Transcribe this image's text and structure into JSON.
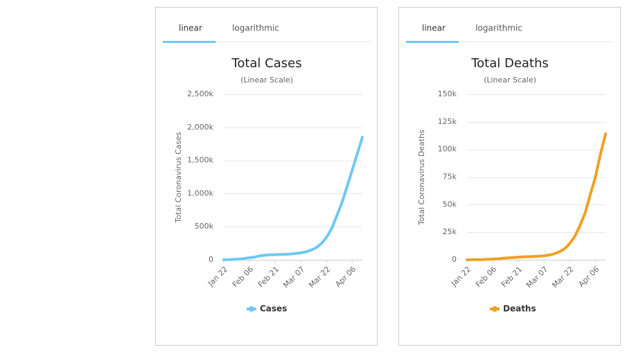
{
  "tabs": [
    [
      "linear",
      "logarithmic"
    ],
    [
      "linear",
      "logarithmic"
    ]
  ],
  "chart_data": [
    {
      "type": "line",
      "title": "Total Cases",
      "subtitle": "(Linear Scale)",
      "y_label": "Total Coronavirus Cases",
      "categories": [
        "Jan 22",
        null,
        null,
        null,
        null,
        "Feb 06",
        null,
        null,
        null,
        null,
        "Feb 21",
        null,
        null,
        null,
        null,
        "Mar 07",
        null,
        null,
        null,
        null,
        "Mar 22",
        null,
        null,
        null,
        null,
        "Apr 06",
        null,
        null
      ],
      "series": [
        {
          "name": "Cases",
          "color": "#6ec8f4",
          "values": [
            0.6,
            2,
            6,
            10,
            20,
            31,
            40,
            60,
            69,
            75,
            77,
            80,
            83,
            88,
            95,
            106,
            119,
            146,
            182,
            245,
            337,
            470,
            660,
            860,
            1100,
            1350,
            1600,
            1850
          ]
        }
      ],
      "ylim": [
        0,
        2500
      ],
      "yticks": [
        0,
        {
          "value": 500,
          "label": "500k"
        },
        {
          "value": 1000,
          "label": "1,000k"
        },
        {
          "value": 1500,
          "label": "1,500k"
        },
        {
          "value": 2000,
          "label": "2,000k"
        },
        {
          "value": 2500,
          "label": "2,500k"
        }
      ],
      "grid": true
    },
    {
      "type": "line",
      "title": "Total Deaths",
      "subtitle": "(Linear Scale)",
      "y_label": "Total Coronavirus Deaths",
      "categories": [
        "Jan 22",
        null,
        null,
        null,
        null,
        "Feb 06",
        null,
        null,
        null,
        null,
        "Feb 21",
        null,
        null,
        null,
        null,
        "Mar 07",
        null,
        null,
        null,
        null,
        "Mar 22",
        null,
        null,
        null,
        null,
        "Apr 06",
        null,
        null
      ],
      "series": [
        {
          "name": "Deaths",
          "color": "#f0a023",
          "values": [
            0.02,
            0.06,
            0.13,
            0.21,
            0.43,
            0.64,
            0.91,
            1.37,
            1.67,
            2.0,
            2.36,
            2.7,
            2.8,
            3.0,
            3.2,
            3.5,
            4.3,
            5.4,
            7.2,
            9.9,
            14.6,
            21.3,
            30.9,
            42.3,
            58.8,
            74.7,
            95.7,
            114.1
          ]
        }
      ],
      "ylim": [
        0,
        150
      ],
      "yticks": [
        0,
        {
          "value": 25,
          "label": "25k"
        },
        {
          "value": 50,
          "label": "50k"
        },
        {
          "value": 75,
          "label": "75k"
        },
        {
          "value": 100,
          "label": "100k"
        },
        {
          "value": 125,
          "label": "125k"
        },
        {
          "value": 150,
          "label": "150k"
        }
      ],
      "grid": true
    }
  ]
}
